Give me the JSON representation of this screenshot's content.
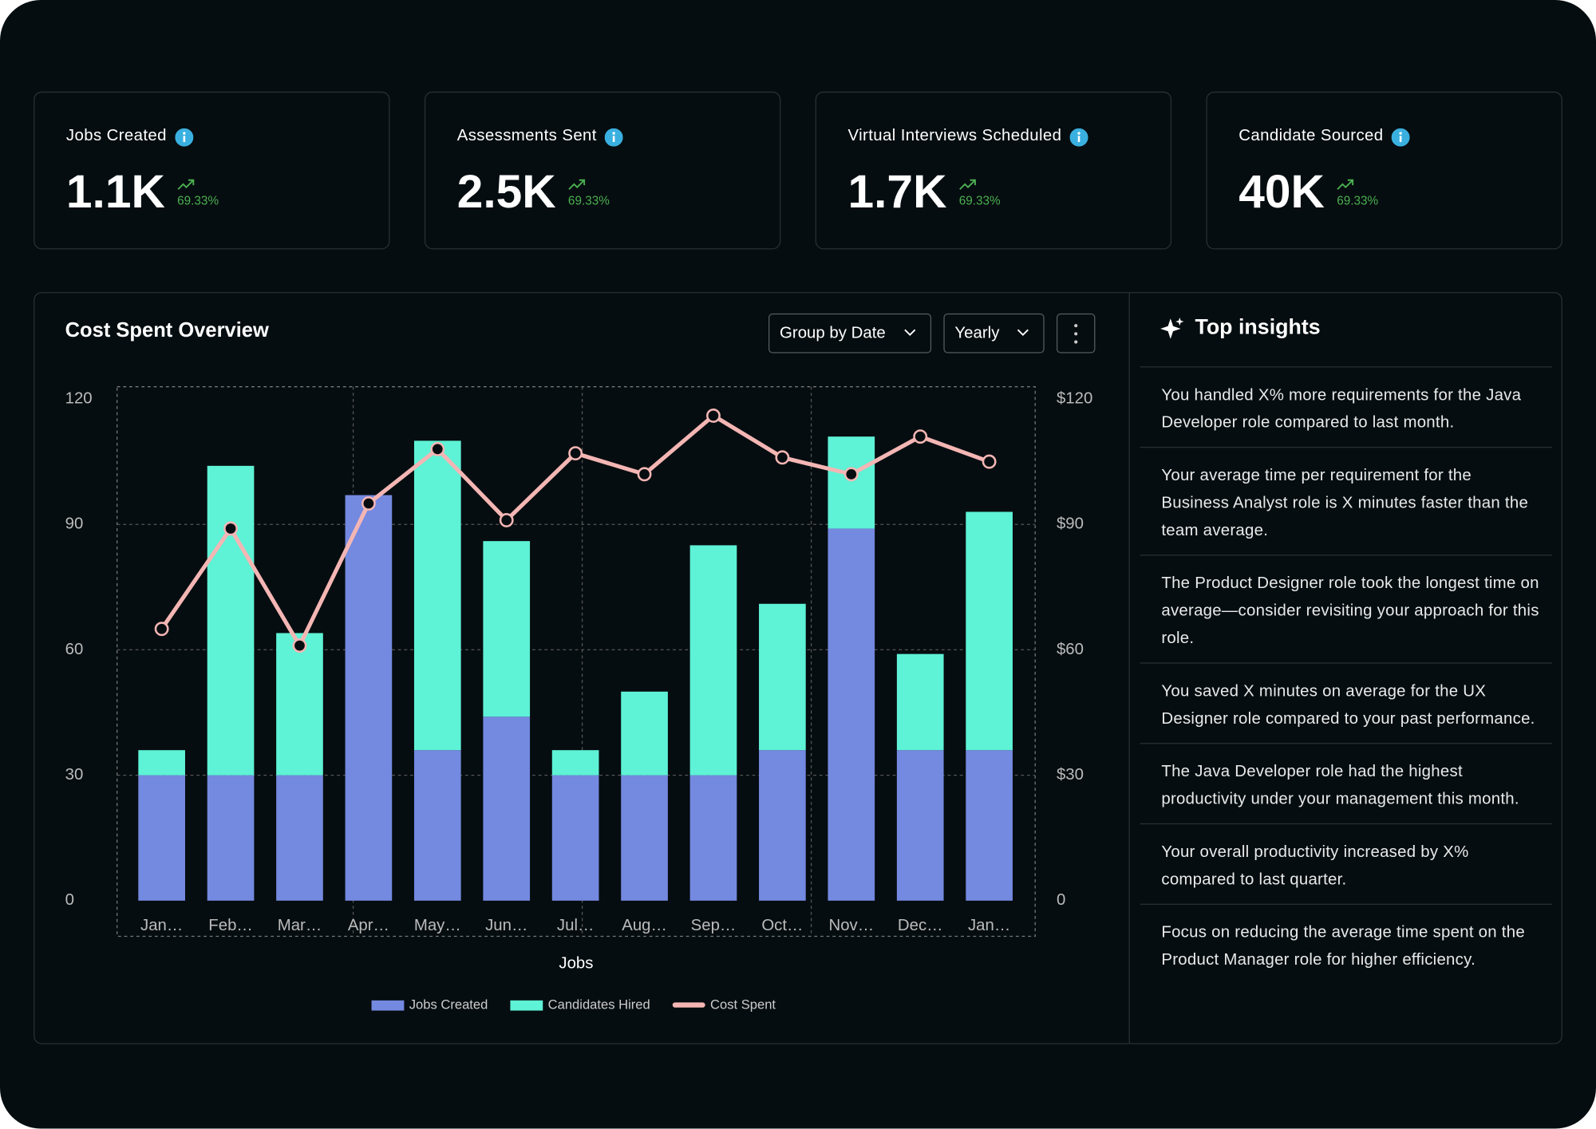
{
  "kpis": [
    {
      "label": "Jobs Created",
      "value": "1.1K",
      "change": "69.33%"
    },
    {
      "label": "Assessments Sent",
      "value": "2.5K",
      "change": "69.33%"
    },
    {
      "label": "Virtual Interviews Scheduled",
      "value": "1.7K",
      "change": "69.33%"
    },
    {
      "label": "Candidate Sourced",
      "value": "40K",
      "change": "69.33%"
    }
  ],
  "controls": [
    "Group by Date",
    "Yearly"
  ],
  "chart_data": {
    "type": "bar",
    "stacked": true,
    "title": "Cost Spent Overview",
    "xlabel": "Jobs",
    "categories": [
      "Jan…",
      "Feb…",
      "Mar…",
      "Apr…",
      "May…",
      "Jun…",
      "Jul…",
      "Aug…",
      "Sep…",
      "Oct…",
      "Nov…",
      "Dec…",
      "Jan…"
    ],
    "series": [
      {
        "name": "Jobs Created",
        "color": "#7489e0",
        "values": [
          30,
          30,
          30,
          97,
          36,
          44,
          30,
          30,
          30,
          36,
          89,
          36,
          36
        ]
      },
      {
        "name": "Candidates Hired",
        "color": "#5ef2d6",
        "values": [
          6,
          74,
          34,
          0,
          74,
          42,
          6,
          20,
          55,
          35,
          22,
          23,
          57
        ]
      },
      {
        "name": "Cost Spent",
        "type": "line",
        "axis": "y2",
        "color": "#f4b6b4",
        "values": [
          65,
          89,
          61,
          95,
          108,
          91,
          107,
          102,
          116,
          106,
          102,
          111,
          105
        ]
      }
    ],
    "ylim": [
      0,
      120
    ],
    "yticks": [
      0,
      30,
      60,
      90,
      120
    ],
    "y2lim": [
      0,
      120
    ],
    "y2ticks": [
      0,
      {
        "value": 30,
        "label": "$30"
      },
      {
        "value": 60,
        "label": "$60"
      },
      {
        "value": 90,
        "label": "$90"
      },
      {
        "value": 120,
        "label": "$120"
      }
    ],
    "grid": true
  },
  "insights": {
    "title": "Top insights",
    "items": [
      "You handled X% more requirements for the Java Developer role compared to last month.",
      "Your average time per requirement for the Business Analyst role is X minutes faster than the team average.",
      "The Product Designer role took the longest time on average—consider revisiting your approach for this role.",
      "You saved X minutes on average for the UX Designer role compared to your past performance.",
      "The Java Developer role had the highest productivity under your management this month.",
      "Your overall productivity increased by X% compared to last quarter.",
      "Focus on reducing the average time spent on the Product Manager role for higher efficiency."
    ]
  }
}
